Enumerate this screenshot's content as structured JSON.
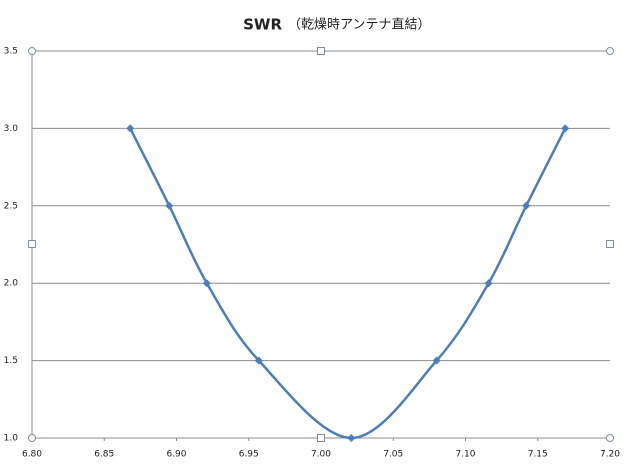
{
  "chart_data": {
    "type": "line",
    "title": "SWR",
    "title_note": "（乾燥時アンテナ直結）",
    "x": [
      6.868,
      6.895,
      6.921,
      6.957,
      7.021,
      7.08,
      7.116,
      7.142,
      7.169
    ],
    "series": [
      {
        "color": "#4a7ebb",
        "values": [
          3.0,
          2.5,
          2.0,
          1.5,
          1.0,
          1.5,
          2.0,
          2.5,
          3.0
        ]
      }
    ],
    "xlim": [
      6.8,
      7.2
    ],
    "xticks": [
      {
        "value": 6.8,
        "label": "6.80"
      },
      {
        "value": 6.85,
        "label": "6.85"
      },
      {
        "value": 6.9,
        "label": "6.90"
      },
      {
        "value": 6.95,
        "label": "6.95"
      },
      {
        "value": 7.0,
        "label": "7.00"
      },
      {
        "value": 7.05,
        "label": "7.05"
      },
      {
        "value": 7.1,
        "label": "7.10"
      },
      {
        "value": 7.15,
        "label": "7.15"
      },
      {
        "value": 7.2,
        "label": "7.20"
      }
    ],
    "ylim": [
      1.0,
      3.5
    ],
    "yticks": [
      {
        "value": 1.0,
        "label": "1.0"
      },
      {
        "value": 1.5,
        "label": "1.5"
      },
      {
        "value": 2.0,
        "label": "2.0"
      },
      {
        "value": 2.5,
        "label": "2.5"
      },
      {
        "value": 3.0,
        "label": "3.0"
      },
      {
        "value": 3.5,
        "label": "3.5"
      }
    ],
    "grid": true,
    "smooth": true
  }
}
